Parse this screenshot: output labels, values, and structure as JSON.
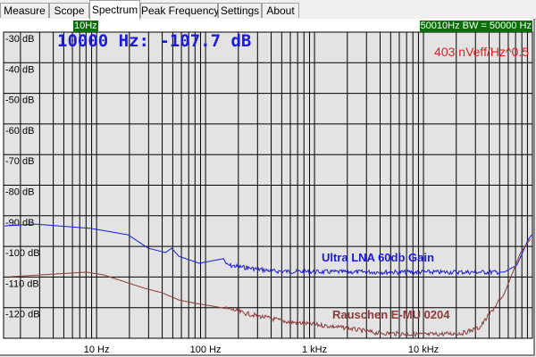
{
  "tabs": [
    "Measure",
    "Scope",
    "Spectrum",
    "Peak Frequency",
    "Settings",
    "About"
  ],
  "selected_tab": "Spectrum",
  "markers": {
    "left": "10Hz",
    "right": "50010Hz BW = 50000 Hz"
  },
  "readout": "10000 Hz: -107.7 dB",
  "noise_density": "403 nVeff/Hz^0.5",
  "chart_data": {
    "type": "line",
    "xscale": "log",
    "xlim": [
      1.4,
      100000
    ],
    "ylim": [
      -130,
      -30
    ],
    "grid": true,
    "xticks": [
      {
        "v": 10,
        "label": "10 Hz"
      },
      {
        "v": 100,
        "label": "100 Hz"
      },
      {
        "v": 1000,
        "label": "1 kHz"
      },
      {
        "v": 10000,
        "label": "10 kHz"
      }
    ],
    "yticks": [
      {
        "v": -30,
        "label": "-30 dB"
      },
      {
        "v": -40,
        "label": "-40 dB"
      },
      {
        "v": -50,
        "label": "-50 dB"
      },
      {
        "v": -60,
        "label": "-60 dB"
      },
      {
        "v": -70,
        "label": "-70 dB"
      },
      {
        "v": -80,
        "label": "-80 dB"
      },
      {
        "v": -90,
        "label": "-90 dB"
      },
      {
        "v": -100,
        "label": "-100 dB"
      },
      {
        "v": -110,
        "label": "-110 dB"
      },
      {
        "v": -120,
        "label": "-120 dB"
      }
    ],
    "series": [
      {
        "name": "Ultra LNA 60db Gain",
        "color": "#1a1ae0",
        "x": [
          1.43,
          2.7,
          8.8,
          19.4,
          29.9,
          42.8,
          48.9,
          56.8,
          87.6,
          146,
          157,
          243,
          428,
          1000,
          5000,
          20000,
          55000,
          72000,
          92000,
          100000
        ],
        "y": [
          -93.3,
          -92.7,
          -94.1,
          -96.2,
          -100.6,
          -102,
          -100.6,
          -103.2,
          -105.5,
          -104,
          -106.1,
          -107,
          -108.1,
          -108.3,
          -108.4,
          -108.4,
          -108.4,
          -106.1,
          -97.6,
          -96
        ]
      },
      {
        "name": "Rauschen E-MU 0204",
        "color": "#8b3a3a",
        "x": [
          1.63,
          8.1,
          11.6,
          27.7,
          39.7,
          56.8,
          81.3,
          116,
          194,
          208,
          534,
          1830,
          3750,
          11000,
          22900,
          32800,
          54800,
          78000,
          96000
        ],
        "y": [
          -109.9,
          -108.4,
          -109.3,
          -113.7,
          -115.1,
          -117.5,
          -118.6,
          -119.5,
          -121,
          -121.5,
          -124.5,
          -126.5,
          -128.3,
          -128.8,
          -128.3,
          -126.5,
          -115.7,
          -102,
          -97.6
        ]
      }
    ]
  }
}
